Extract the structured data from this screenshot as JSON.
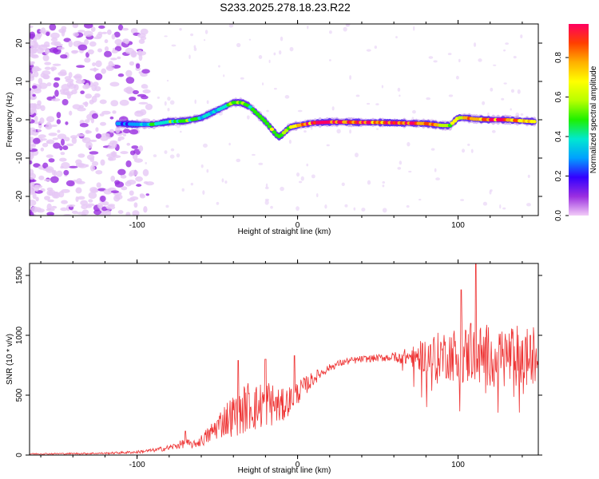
{
  "title": "S233.2025.278.18.23.R22",
  "chart_data": [
    {
      "type": "heatmap",
      "xlabel": "Height of straight line (km)",
      "ylabel": "Frequency (Hz)",
      "xlim": [
        -167,
        150
      ],
      "ylim": [
        -25,
        25
      ],
      "x_ticks": [
        -100,
        0,
        100
      ],
      "y_ticks": [
        -20,
        -10,
        0,
        10,
        20
      ],
      "colorbar": {
        "label": "Normalized spectral amplitude",
        "ticks": [
          "0.0",
          "0.2",
          "0.4",
          "0.6",
          "0.8"
        ],
        "range": [
          0,
          0.97
        ],
        "colors": [
          "#f2ccf7",
          "#9a2fe0",
          "#3300ff",
          "#00a0ff",
          "#00e8d0",
          "#1ef000",
          "#b8ff00",
          "#ffff00",
          "#ffb000",
          "#ff4000",
          "#ff0060"
        ]
      },
      "ridge": {
        "x": [
          -112,
          -100,
          -90,
          -80,
          -70,
          -60,
          -50,
          -45,
          -40,
          -35,
          -30,
          -25,
          -20,
          -16,
          -14,
          -12,
          -10,
          -5,
          0,
          10,
          20,
          30,
          40,
          50,
          60,
          70,
          80,
          90,
          95,
          100,
          105,
          110,
          120,
          130,
          140,
          148
        ],
        "freq": [
          -1,
          -1.2,
          -1.2,
          -0.5,
          -0.3,
          0.5,
          2.5,
          3.5,
          4.5,
          4.5,
          3.5,
          1.5,
          -0.5,
          -2.5,
          -3.5,
          -4.5,
          -4,
          -2,
          -1.5,
          -0.8,
          -0.6,
          -0.6,
          -0.7,
          -0.7,
          -0.8,
          -0.9,
          -1,
          -1.5,
          -1.5,
          0.5,
          0.5,
          0.2,
          0,
          0,
          -0.3,
          -0.5
        ],
        "amplitude": [
          0.28,
          0.3,
          0.42,
          0.48,
          0.5,
          0.4,
          0.35,
          0.48,
          0.55,
          0.5,
          0.42,
          0.48,
          0.52,
          0.6,
          0.5,
          0.4,
          0.42,
          0.6,
          0.8,
          0.9,
          0.95,
          0.92,
          0.9,
          0.88,
          0.9,
          0.92,
          0.85,
          0.7,
          0.55,
          0.6,
          0.75,
          0.85,
          0.9,
          0.88,
          0.8,
          0.7
        ]
      }
    },
    {
      "type": "line",
      "xlabel": "Height of straight line (km)",
      "ylabel": "SNR (10 * v/v)",
      "xlim": [
        -167,
        150
      ],
      "ylim": [
        0,
        1600
      ],
      "x_ticks": [
        -100,
        0,
        100
      ],
      "y_ticks": [
        0,
        500,
        1000,
        1500
      ],
      "color": "#ee3333",
      "envelope": {
        "x": [
          -167,
          -140,
          -120,
          -100,
          -90,
          -80,
          -75,
          -70,
          -65,
          -60,
          -55,
          -50,
          -45,
          -40,
          -35,
          -30,
          -25,
          -20,
          -15,
          -10,
          -5,
          0,
          5,
          10,
          15,
          20,
          25,
          30,
          40,
          50,
          60,
          70,
          80,
          90,
          100,
          110,
          120,
          130,
          140,
          150
        ],
        "y": [
          10,
          12,
          15,
          25,
          40,
          60,
          80,
          100,
          85,
          120,
          170,
          240,
          300,
          330,
          360,
          420,
          390,
          450,
          420,
          400,
          460,
          520,
          580,
          640,
          690,
          730,
          760,
          780,
          800,
          810,
          820,
          820,
          830,
          840,
          840,
          830,
          830,
          820,
          820,
          820
        ],
        "noise": [
          6,
          6,
          8,
          12,
          15,
          25,
          30,
          40,
          30,
          50,
          80,
          110,
          150,
          180,
          200,
          220,
          200,
          220,
          180,
          150,
          120,
          100,
          80,
          60,
          40,
          30,
          30,
          30,
          30,
          30,
          40,
          80,
          150,
          200,
          240,
          260,
          270,
          270,
          270,
          270
        ]
      },
      "spikes": [
        {
          "x": -70,
          "y": 200
        },
        {
          "x": -37,
          "y": 790
        },
        {
          "x": -20,
          "y": 800
        },
        {
          "x": -2,
          "y": 830
        },
        {
          "x": 102,
          "y": 1380
        },
        {
          "x": 108,
          "y": 1100
        },
        {
          "x": 111,
          "y": 1600
        },
        {
          "x": 145,
          "y": 1000
        }
      ]
    }
  ]
}
